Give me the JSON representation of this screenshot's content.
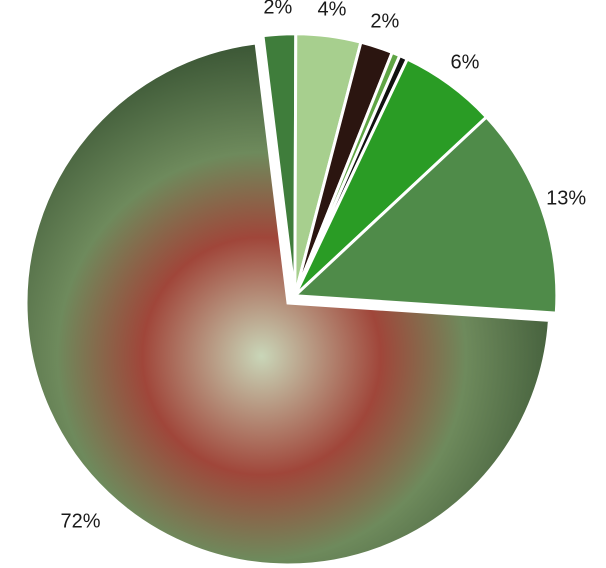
{
  "chart_data": {
    "type": "pie",
    "values": [
      2,
      4,
      2,
      0.5,
      0.5,
      6,
      13,
      72
    ],
    "value_labels": [
      "2%",
      "4%",
      "2%",
      null,
      null,
      "6%",
      "13%",
      "72%"
    ],
    "colors": [
      "#3f7d3b",
      "#a7cf8e",
      "#2b1510",
      "#5fa545",
      "#111111",
      "#2a9c25",
      "#4f8b49",
      "#56734a"
    ],
    "exploded": [
      true,
      true,
      true,
      true,
      true,
      true,
      true,
      false
    ]
  }
}
